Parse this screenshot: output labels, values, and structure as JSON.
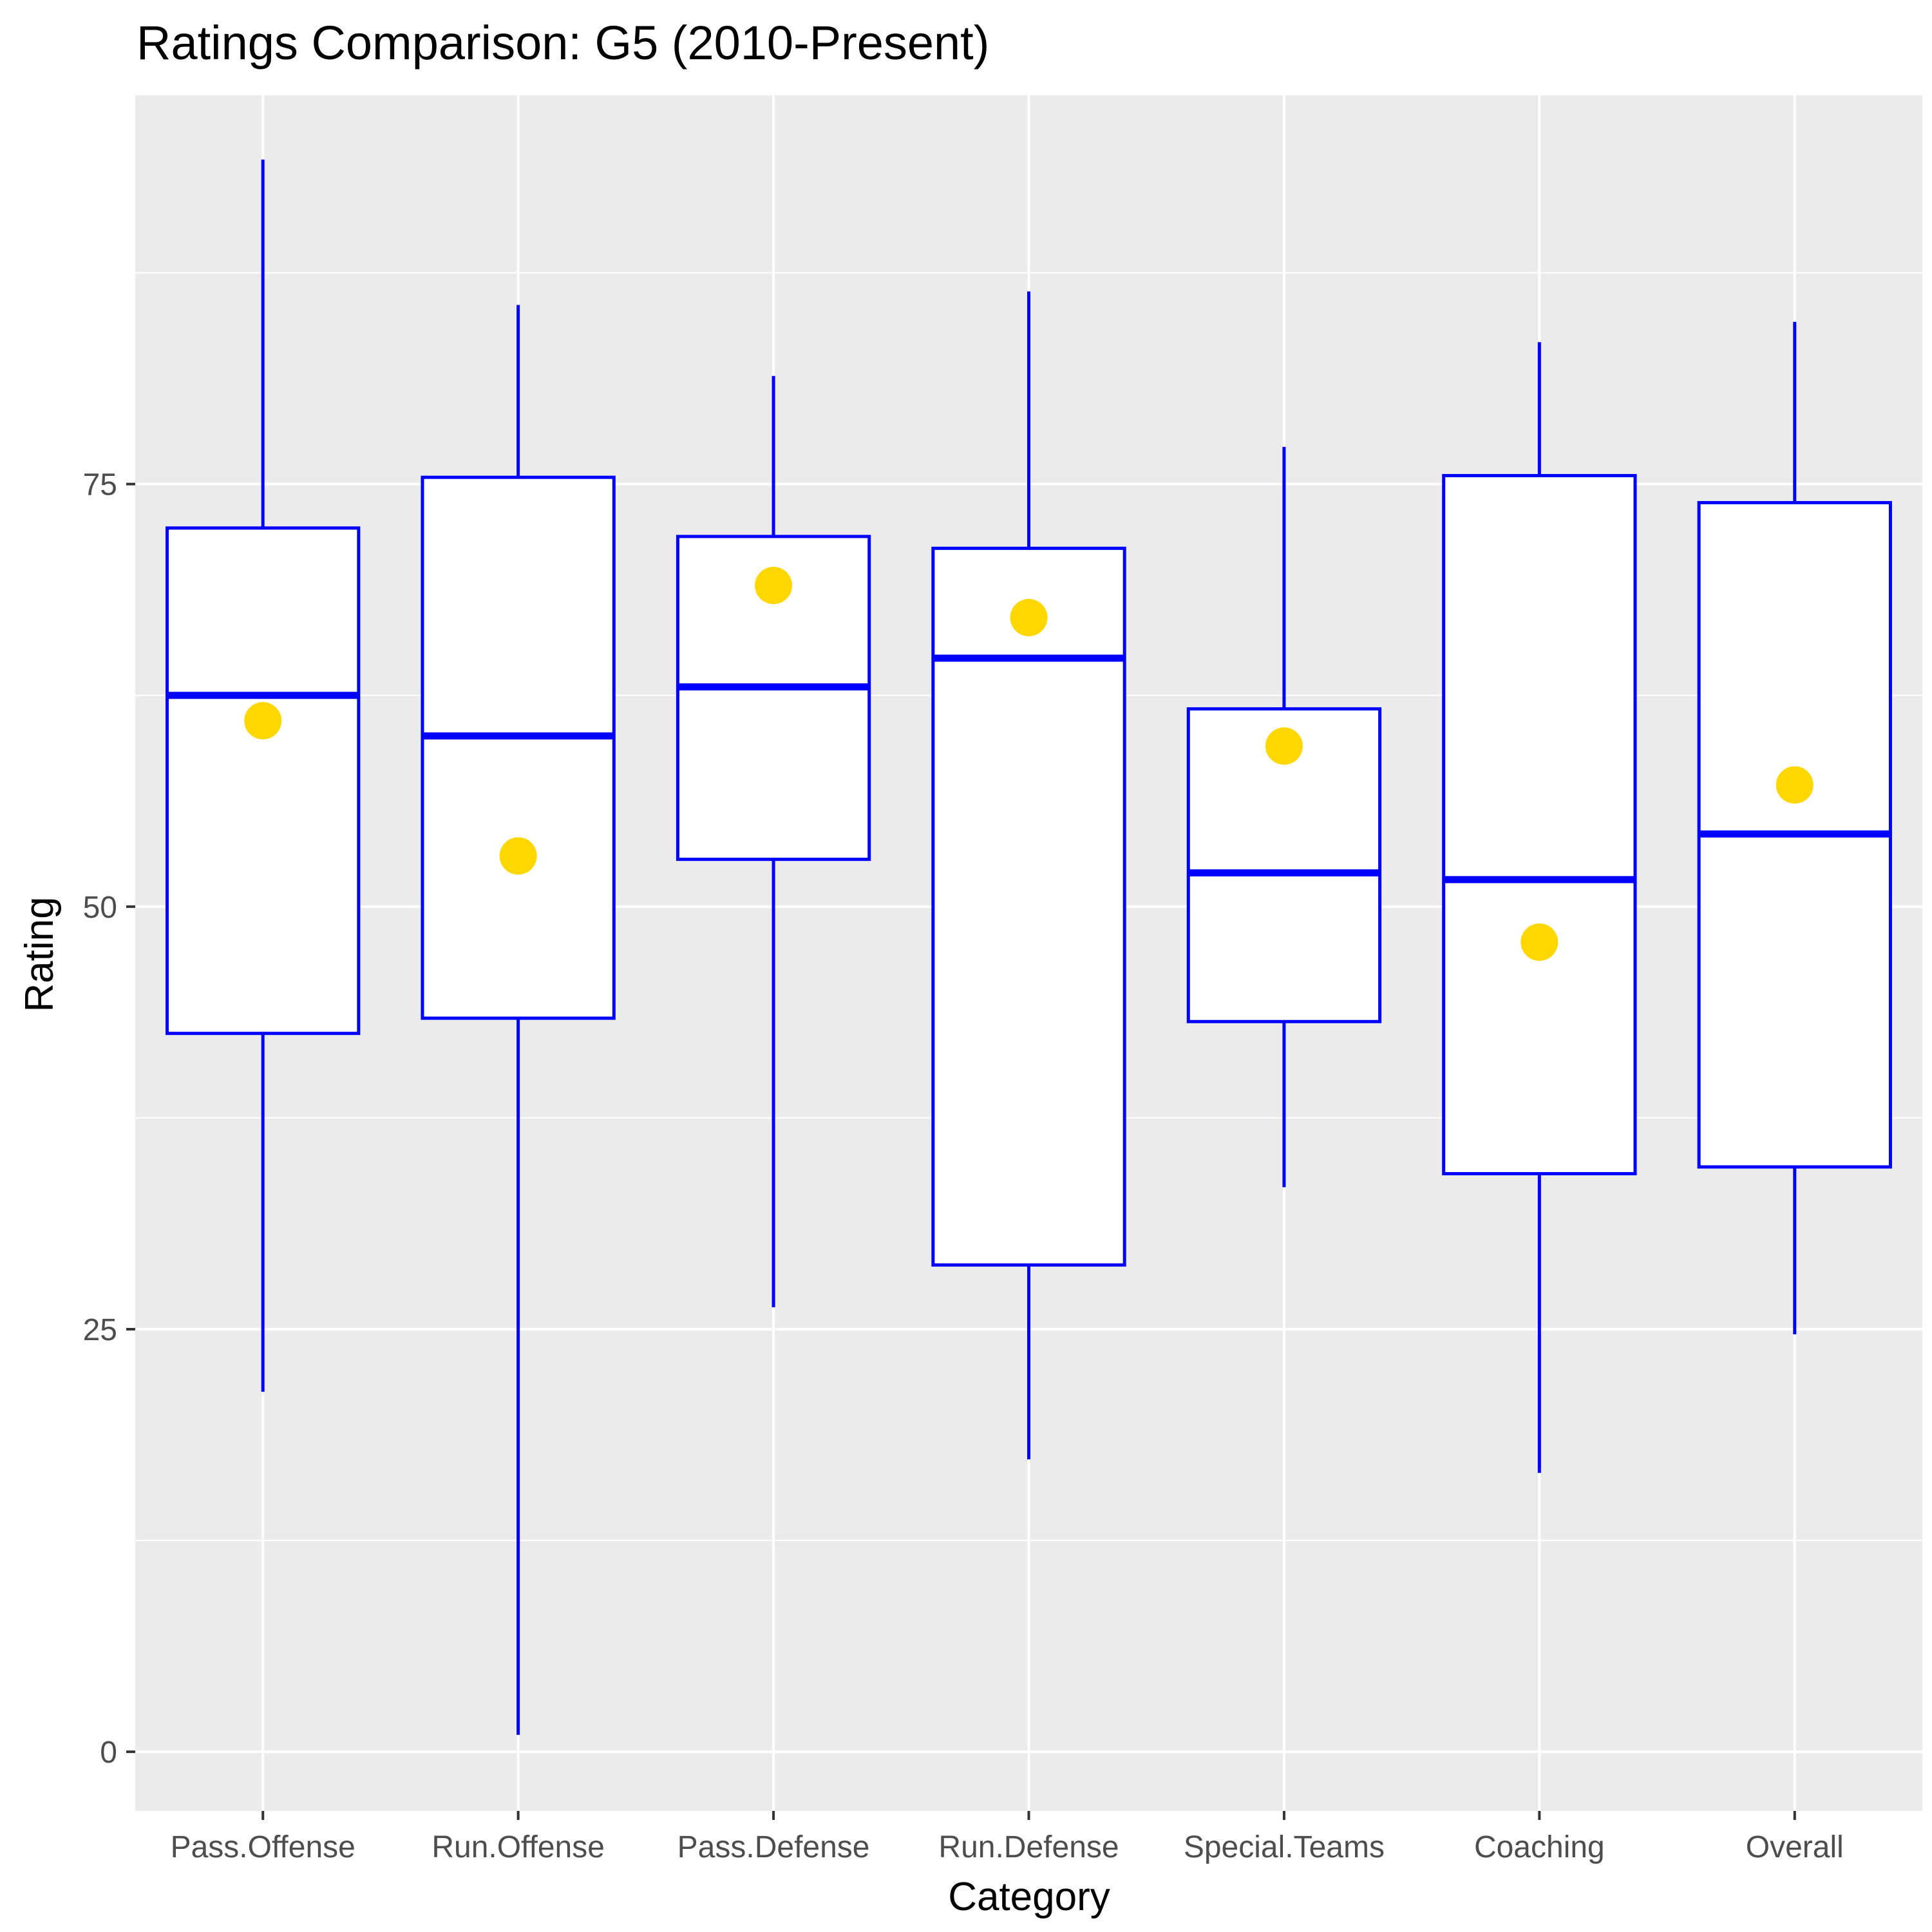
{
  "chart_data": {
    "type": "boxplot",
    "title": "Ratings Comparison: G5 (2010-Present)",
    "xlabel": "Category",
    "ylabel": "Rating",
    "ylim": [
      -3.5,
      98
    ],
    "yticks": [
      0,
      25,
      50,
      75
    ],
    "categories": [
      "Pass.Offense",
      "Run.Offense",
      "Pass.Defense",
      "Run.Defense",
      "Special.Teams",
      "Coaching",
      "Overall"
    ],
    "boxes": [
      {
        "category": "Pass.Offense",
        "min": 21.3,
        "q1": 42.5,
        "median": 62.5,
        "q3": 72.4,
        "max": 94.2,
        "point": 61.0
      },
      {
        "category": "Run.Offense",
        "min": 1.0,
        "q1": 43.4,
        "median": 60.1,
        "q3": 75.4,
        "max": 85.6,
        "point": 53.0
      },
      {
        "category": "Pass.Defense",
        "min": 26.3,
        "q1": 52.8,
        "median": 63.0,
        "q3": 71.9,
        "max": 81.4,
        "point": 69.0
      },
      {
        "category": "Run.Defense",
        "min": 17.3,
        "q1": 28.8,
        "median": 64.7,
        "q3": 71.2,
        "max": 86.4,
        "point": 67.1
      },
      {
        "category": "Special.Teams",
        "min": 33.4,
        "q1": 43.2,
        "median": 52.0,
        "q3": 61.7,
        "max": 77.2,
        "point": 59.5
      },
      {
        "category": "Coaching",
        "min": 16.5,
        "q1": 34.2,
        "median": 51.6,
        "q3": 75.5,
        "max": 83.4,
        "point": 47.9
      },
      {
        "category": "Overall",
        "min": 24.7,
        "q1": 34.6,
        "median": 54.3,
        "q3": 73.9,
        "max": 84.6,
        "point": 57.2
      }
    ],
    "grid": true,
    "colors": {
      "panel_background": "#ebebeb",
      "grid_major": "#ffffff",
      "box_outline": "#0000ff",
      "box_fill": "#ffffff",
      "point": "#ffd700",
      "tick_text": "#4d4d4d",
      "tick_mark": "#333333"
    }
  }
}
